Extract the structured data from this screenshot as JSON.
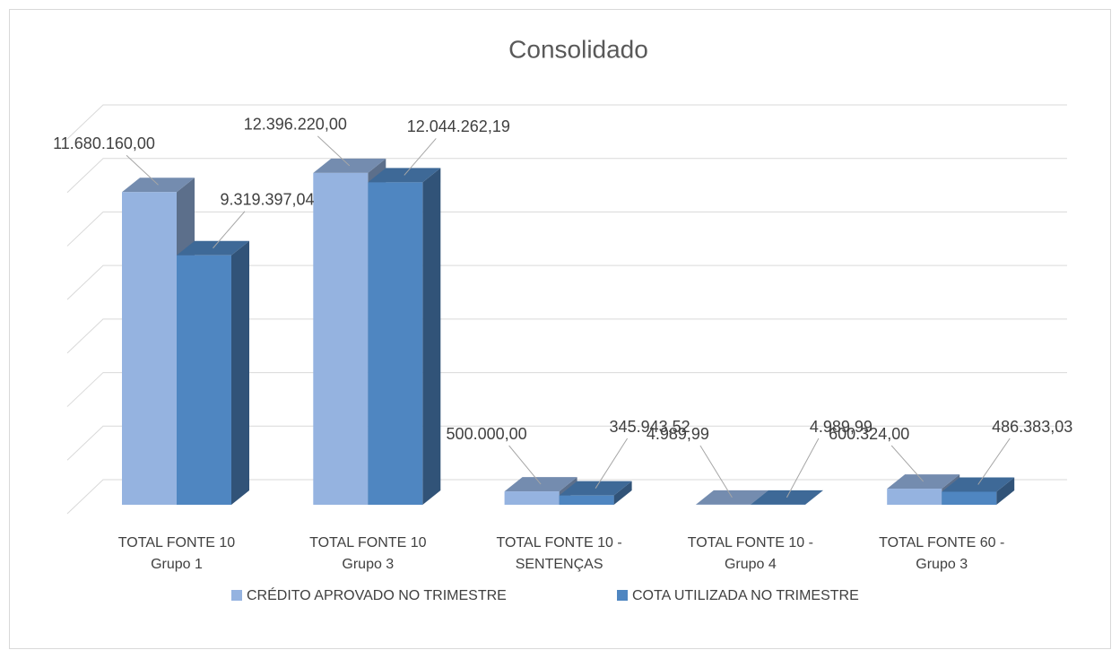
{
  "chart_data": {
    "type": "bar3d",
    "title": "Consolidado",
    "categories": [
      "TOTAL FONTE 10\nGrupo 1",
      "TOTAL FONTE 10\nGrupo 3",
      "TOTAL FONTE 10 -\nSENTENÇAS",
      "TOTAL FONTE 10 -\nGrupo 4",
      "TOTAL FONTE 60 -\nGrupo 3"
    ],
    "series": [
      {
        "name": "CRÉDITO APROVADO NO TRIMESTRE",
        "color": "#95b3e0",
        "values": [
          11680160,
          12396220,
          500000,
          4989.99,
          600324
        ],
        "value_labels": [
          "11.680.160,00",
          "12.396.220,00",
          "500.000,00",
          "4.989,99",
          "600.324,00"
        ]
      },
      {
        "name": "COTA UTILIZADA NO TRIMESTRE",
        "color": "#4f86c1",
        "values": [
          9319397.04,
          12044262.19,
          345943.52,
          4989.99,
          486383.03
        ],
        "value_labels": [
          "9.319.397,04",
          "12.044.262,19",
          "345.943,52",
          "4.989,99",
          "486.383,03"
        ]
      }
    ],
    "ylim": [
      0,
      14000000
    ],
    "yticks": [
      0,
      2000000,
      4000000,
      6000000,
      8000000,
      10000000,
      12000000,
      14000000
    ],
    "grid": true,
    "legend": "bottom"
  }
}
